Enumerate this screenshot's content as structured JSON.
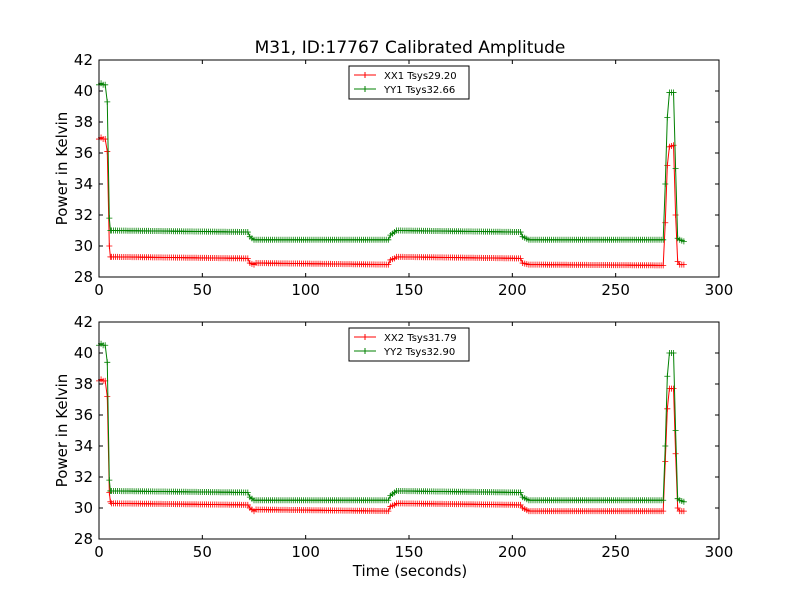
{
  "title": "M31, ID:17767 Calibrated Amplitude",
  "xlabel": "Time (seconds)",
  "colors": {
    "xx": "#ff0000",
    "yy": "#008000",
    "axes": "#000000"
  },
  "chart_data": [
    {
      "type": "line",
      "ylabel": "Power in Kelvin",
      "xlabel": "",
      "xlim": [
        0,
        300
      ],
      "ylim": [
        28,
        42
      ],
      "xticks": [
        "0",
        "50",
        "100",
        "150",
        "200",
        "250",
        "300"
      ],
      "yticks": [
        "28",
        "30",
        "32",
        "34",
        "36",
        "38",
        "40",
        "42"
      ],
      "legend_position": "top-center",
      "series": [
        {
          "name": "XX1 Tsys29.20",
          "color": "#ff0000",
          "segments": [
            {
              "x": [
                0,
                1,
                2,
                3,
                4
              ],
              "y": [
                36.9,
                37.0,
                36.9,
                36.9,
                36.1
              ]
            },
            {
              "x": [
                5,
                5.5
              ],
              "y": [
                30.0,
                29.3
              ]
            },
            {
              "x": [
                6,
                72
              ],
              "y": [
                29.3,
                29.2
              ]
            },
            {
              "x": [
                73,
                75
              ],
              "y": [
                28.9,
                28.8
              ]
            },
            {
              "x": [
                76,
                140
              ],
              "y": [
                28.9,
                28.8
              ]
            },
            {
              "x": [
                141,
                143
              ],
              "y": [
                29.1,
                29.2
              ]
            },
            {
              "x": [
                144,
                204
              ],
              "y": [
                29.3,
                29.2
              ]
            },
            {
              "x": [
                205,
                208
              ],
              "y": [
                28.9,
                28.8
              ]
            },
            {
              "x": [
                209,
                273
              ],
              "y": [
                28.8,
                28.75
              ]
            },
            {
              "x": [
                274,
                275
              ],
              "y": [
                31.5,
                35.2
              ]
            },
            {
              "x": [
                276,
                278
              ],
              "y": [
                36.4,
                36.5
              ]
            },
            {
              "x": [
                279,
                280
              ],
              "y": [
                32.0,
                29.0
              ]
            },
            {
              "x": [
                281,
                283
              ],
              "y": [
                28.8,
                28.8
              ]
            }
          ]
        },
        {
          "name": "YY1 Tsys32.66",
          "color": "#008000",
          "segments": [
            {
              "x": [
                0,
                1,
                2,
                3,
                4
              ],
              "y": [
                40.4,
                40.5,
                40.4,
                40.4,
                39.3
              ]
            },
            {
              "x": [
                5,
                5.5
              ],
              "y": [
                31.8,
                31.0
              ]
            },
            {
              "x": [
                6,
                72
              ],
              "y": [
                31.0,
                30.9
              ]
            },
            {
              "x": [
                73,
                75
              ],
              "y": [
                30.6,
                30.4
              ]
            },
            {
              "x": [
                76,
                140
              ],
              "y": [
                30.4,
                30.4
              ]
            },
            {
              "x": [
                141,
                143
              ],
              "y": [
                30.7,
                30.9
              ]
            },
            {
              "x": [
                144,
                204
              ],
              "y": [
                31.0,
                30.9
              ]
            },
            {
              "x": [
                205,
                208
              ],
              "y": [
                30.6,
                30.4
              ]
            },
            {
              "x": [
                209,
                273
              ],
              "y": [
                30.4,
                30.4
              ]
            },
            {
              "x": [
                274,
                275
              ],
              "y": [
                34.0,
                38.3
              ]
            },
            {
              "x": [
                276,
                278
              ],
              "y": [
                39.9,
                39.9
              ]
            },
            {
              "x": [
                279,
                280
              ],
              "y": [
                35.0,
                30.5
              ]
            },
            {
              "x": [
                281,
                283
              ],
              "y": [
                30.4,
                30.3
              ]
            }
          ]
        }
      ]
    },
    {
      "type": "line",
      "ylabel": "Power in Kelvin",
      "xlabel": "Time (seconds)",
      "xlim": [
        0,
        300
      ],
      "ylim": [
        28,
        42
      ],
      "xticks": [
        "0",
        "50",
        "100",
        "150",
        "200",
        "250",
        "300"
      ],
      "yticks": [
        "28",
        "30",
        "32",
        "34",
        "36",
        "38",
        "40",
        "42"
      ],
      "legend_position": "top-center",
      "series": [
        {
          "name": "XX2 Tsys31.79",
          "color": "#ff0000",
          "segments": [
            {
              "x": [
                0,
                1,
                2,
                3,
                4
              ],
              "y": [
                38.2,
                38.3,
                38.2,
                38.2,
                37.2
              ]
            },
            {
              "x": [
                5,
                5.5
              ],
              "y": [
                31.0,
                30.4
              ]
            },
            {
              "x": [
                6,
                72
              ],
              "y": [
                30.3,
                30.2
              ]
            },
            {
              "x": [
                73,
                75
              ],
              "y": [
                30.0,
                29.8
              ]
            },
            {
              "x": [
                76,
                140
              ],
              "y": [
                29.9,
                29.8
              ]
            },
            {
              "x": [
                141,
                143
              ],
              "y": [
                30.1,
                30.2
              ]
            },
            {
              "x": [
                144,
                204
              ],
              "y": [
                30.3,
                30.2
              ]
            },
            {
              "x": [
                205,
                208
              ],
              "y": [
                30.0,
                29.8
              ]
            },
            {
              "x": [
                209,
                273
              ],
              "y": [
                29.8,
                29.8
              ]
            },
            {
              "x": [
                274,
                275
              ],
              "y": [
                33.0,
                36.4
              ]
            },
            {
              "x": [
                276,
                278
              ],
              "y": [
                37.7,
                37.7
              ]
            },
            {
              "x": [
                279,
                280
              ],
              "y": [
                33.5,
                30.0
              ]
            },
            {
              "x": [
                281,
                283
              ],
              "y": [
                29.8,
                29.8
              ]
            }
          ]
        },
        {
          "name": "YY2 Tsys32.90",
          "color": "#008000",
          "segments": [
            {
              "x": [
                0,
                1,
                2,
                3,
                4
              ],
              "y": [
                40.5,
                40.6,
                40.5,
                40.5,
                39.4
              ]
            },
            {
              "x": [
                5,
                5.5
              ],
              "y": [
                31.8,
                31.1
              ]
            },
            {
              "x": [
                6,
                72
              ],
              "y": [
                31.1,
                31.0
              ]
            },
            {
              "x": [
                73,
                75
              ],
              "y": [
                30.7,
                30.5
              ]
            },
            {
              "x": [
                76,
                140
              ],
              "y": [
                30.5,
                30.5
              ]
            },
            {
              "x": [
                141,
                143
              ],
              "y": [
                30.8,
                31.0
              ]
            },
            {
              "x": [
                144,
                204
              ],
              "y": [
                31.1,
                31.0
              ]
            },
            {
              "x": [
                205,
                208
              ],
              "y": [
                30.7,
                30.5
              ]
            },
            {
              "x": [
                209,
                273
              ],
              "y": [
                30.5,
                30.5
              ]
            },
            {
              "x": [
                274,
                275
              ],
              "y": [
                34.0,
                38.5
              ]
            },
            {
              "x": [
                276,
                278
              ],
              "y": [
                40.0,
                40.0
              ]
            },
            {
              "x": [
                279,
                280
              ],
              "y": [
                35.0,
                30.6
              ]
            },
            {
              "x": [
                281,
                283
              ],
              "y": [
                30.5,
                30.4
              ]
            }
          ]
        }
      ]
    }
  ]
}
